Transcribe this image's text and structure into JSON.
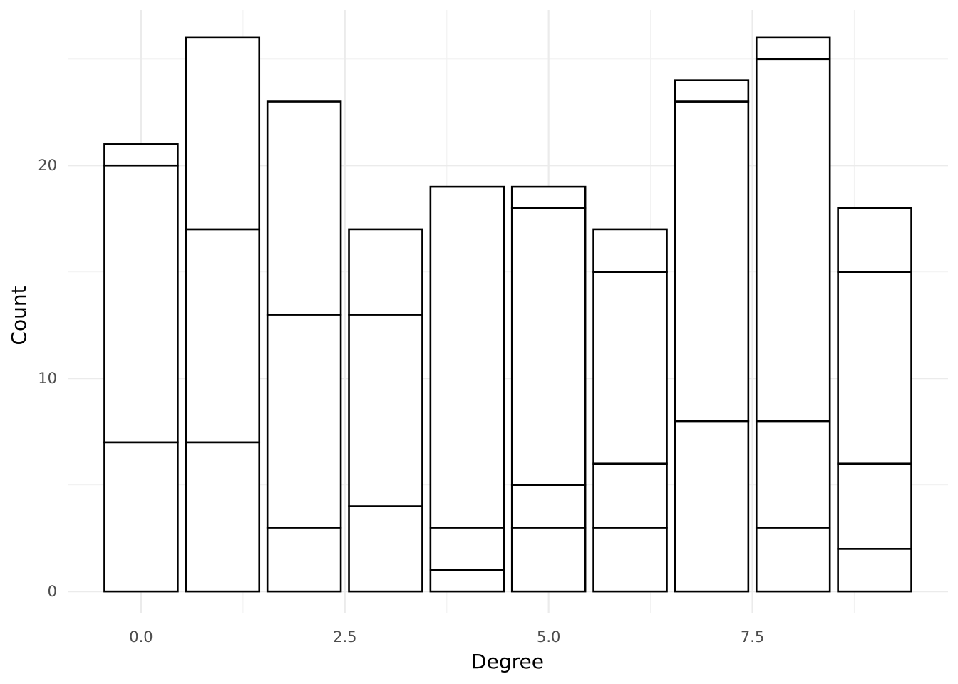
{
  "chart_data": {
    "type": "bar",
    "stacked": true,
    "xlabel": "Degree",
    "ylabel": "Count",
    "xlim": [
      -0.9,
      9.9
    ],
    "ylim": [
      -1.0,
      27.3
    ],
    "x_ticks": [
      0.0,
      2.5,
      5.0,
      7.5
    ],
    "x_tick_labels": [
      "0.0",
      "2.5",
      "5.0",
      "7.5"
    ],
    "y_ticks": [
      0,
      10,
      20
    ],
    "y_tick_labels": [
      "0",
      "10",
      "20"
    ],
    "grid": true,
    "legend": "none",
    "fill_color": "#ffffff",
    "outline_color": "#000000",
    "bar_width": 0.9,
    "x": [
      0,
      1,
      2,
      3,
      4,
      5,
      6,
      7,
      8,
      9
    ],
    "stacked_segments": [
      [
        7,
        13,
        1
      ],
      [
        7,
        10,
        9
      ],
      [
        3,
        10,
        10
      ],
      [
        4,
        9,
        4
      ],
      [
        1,
        2,
        16
      ],
      [
        3,
        2,
        13,
        1
      ],
      [
        3,
        3,
        9,
        2
      ],
      [
        8,
        15,
        1
      ],
      [
        3,
        5,
        17,
        1
      ],
      [
        2,
        4,
        9,
        3
      ]
    ],
    "totals": [
      21,
      26,
      23,
      17,
      19,
      19,
      17,
      24,
      26,
      18
    ]
  }
}
